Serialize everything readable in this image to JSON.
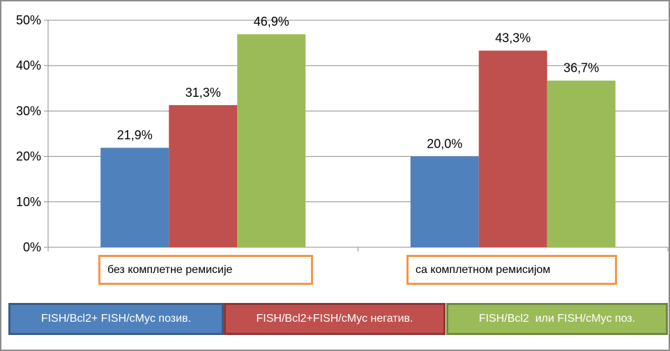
{
  "chart_data": {
    "type": "bar",
    "categories": [
      "без комплетне ремисије",
      "са комплетном ремисијом"
    ],
    "series": [
      {
        "name": "FISH/Bcl2+ FISH/cMyc позив.",
        "color": "#4f81bd",
        "values": [
          21.9,
          20.0
        ],
        "labels": [
          "21,9%",
          "20,0%"
        ]
      },
      {
        "name": "FISH/Bcl2+FISH/cMyc негатив.",
        "color": "#c0504d",
        "values": [
          31.3,
          43.3
        ],
        "labels": [
          "31,3%",
          "43,3%"
        ]
      },
      {
        "name": "FISH/Bcl2  или FISH/cMyc поз.",
        "color": "#9bbb59",
        "values": [
          46.9,
          36.7
        ],
        "labels": [
          "46,9%",
          "36,7%"
        ]
      }
    ],
    "ylim": [
      0,
      50
    ],
    "yticks": [
      0,
      10,
      20,
      30,
      40,
      50
    ],
    "ytick_labels": [
      "0%",
      "10%",
      "20%",
      "30%",
      "40%",
      "50%"
    ],
    "grid": true,
    "legend_position": "bottom",
    "xlabel": "",
    "ylabel": ""
  }
}
